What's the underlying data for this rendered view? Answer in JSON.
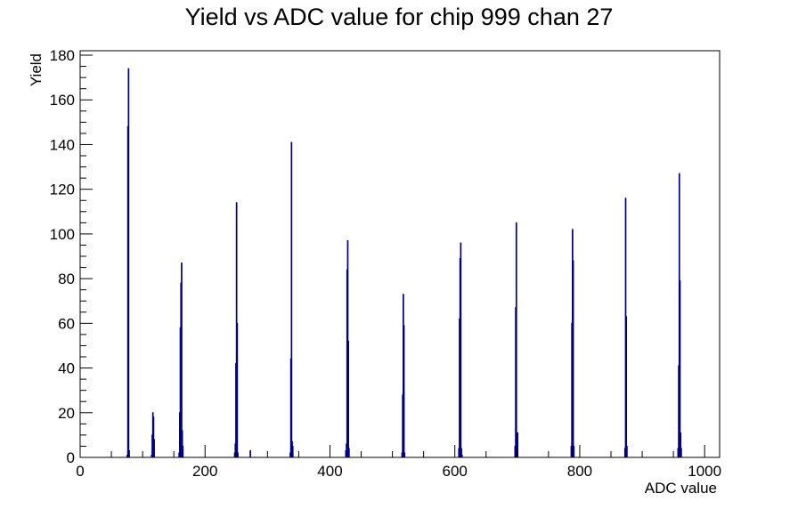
{
  "chart_data": {
    "type": "histogram",
    "title": "Yield vs ADC value for chip 999 chan 27",
    "xlabel": "ADC value",
    "ylabel": "Yield",
    "xlim": [
      0,
      1024
    ],
    "ylim": [
      0,
      182
    ],
    "x_ticks": [
      0,
      200,
      400,
      600,
      800,
      1000
    ],
    "y_ticks": [
      0,
      20,
      40,
      60,
      80,
      100,
      120,
      140,
      160,
      180
    ],
    "grid": false,
    "legend": "none",
    "line_color": "#000080",
    "bins": [
      {
        "x": 75,
        "y": 1
      },
      {
        "x": 76,
        "y": 148
      },
      {
        "x": 77,
        "y": 174
      },
      {
        "x": 78,
        "y": 3
      },
      {
        "x": 114,
        "y": 1
      },
      {
        "x": 115,
        "y": 10
      },
      {
        "x": 116,
        "y": 20
      },
      {
        "x": 117,
        "y": 18
      },
      {
        "x": 118,
        "y": 8
      },
      {
        "x": 158,
        "y": 2
      },
      {
        "x": 159,
        "y": 20
      },
      {
        "x": 160,
        "y": 58
      },
      {
        "x": 161,
        "y": 78
      },
      {
        "x": 162,
        "y": 87
      },
      {
        "x": 163,
        "y": 12
      },
      {
        "x": 164,
        "y": 5
      },
      {
        "x": 247,
        "y": 2
      },
      {
        "x": 248,
        "y": 6
      },
      {
        "x": 249,
        "y": 42
      },
      {
        "x": 250,
        "y": 114
      },
      {
        "x": 251,
        "y": 60
      },
      {
        "x": 252,
        "y": 2
      },
      {
        "x": 272,
        "y": 3
      },
      {
        "x": 336,
        "y": 2
      },
      {
        "x": 337,
        "y": 44
      },
      {
        "x": 338,
        "y": 141
      },
      {
        "x": 339,
        "y": 7
      },
      {
        "x": 340,
        "y": 5
      },
      {
        "x": 425,
        "y": 3
      },
      {
        "x": 426,
        "y": 6
      },
      {
        "x": 427,
        "y": 84
      },
      {
        "x": 428,
        "y": 97
      },
      {
        "x": 429,
        "y": 52
      },
      {
        "x": 430,
        "y": 4
      },
      {
        "x": 515,
        "y": 2
      },
      {
        "x": 516,
        "y": 28
      },
      {
        "x": 517,
        "y": 73
      },
      {
        "x": 518,
        "y": 59
      },
      {
        "x": 519,
        "y": 2
      },
      {
        "x": 606,
        "y": 4
      },
      {
        "x": 607,
        "y": 62
      },
      {
        "x": 608,
        "y": 89
      },
      {
        "x": 609,
        "y": 96
      },
      {
        "x": 610,
        "y": 4
      },
      {
        "x": 611,
        "y": 1
      },
      {
        "x": 696,
        "y": 5
      },
      {
        "x": 697,
        "y": 67
      },
      {
        "x": 698,
        "y": 105
      },
      {
        "x": 699,
        "y": 3
      },
      {
        "x": 700,
        "y": 11
      },
      {
        "x": 786,
        "y": 5
      },
      {
        "x": 787,
        "y": 60
      },
      {
        "x": 788,
        "y": 102
      },
      {
        "x": 789,
        "y": 88
      },
      {
        "x": 790,
        "y": 5
      },
      {
        "x": 872,
        "y": 4
      },
      {
        "x": 873,
        "y": 116
      },
      {
        "x": 874,
        "y": 63
      },
      {
        "x": 875,
        "y": 5
      },
      {
        "x": 957,
        "y": 4
      },
      {
        "x": 958,
        "y": 41
      },
      {
        "x": 959,
        "y": 127
      },
      {
        "x": 960,
        "y": 79
      },
      {
        "x": 961,
        "y": 11
      },
      {
        "x": 962,
        "y": 4
      }
    ]
  }
}
